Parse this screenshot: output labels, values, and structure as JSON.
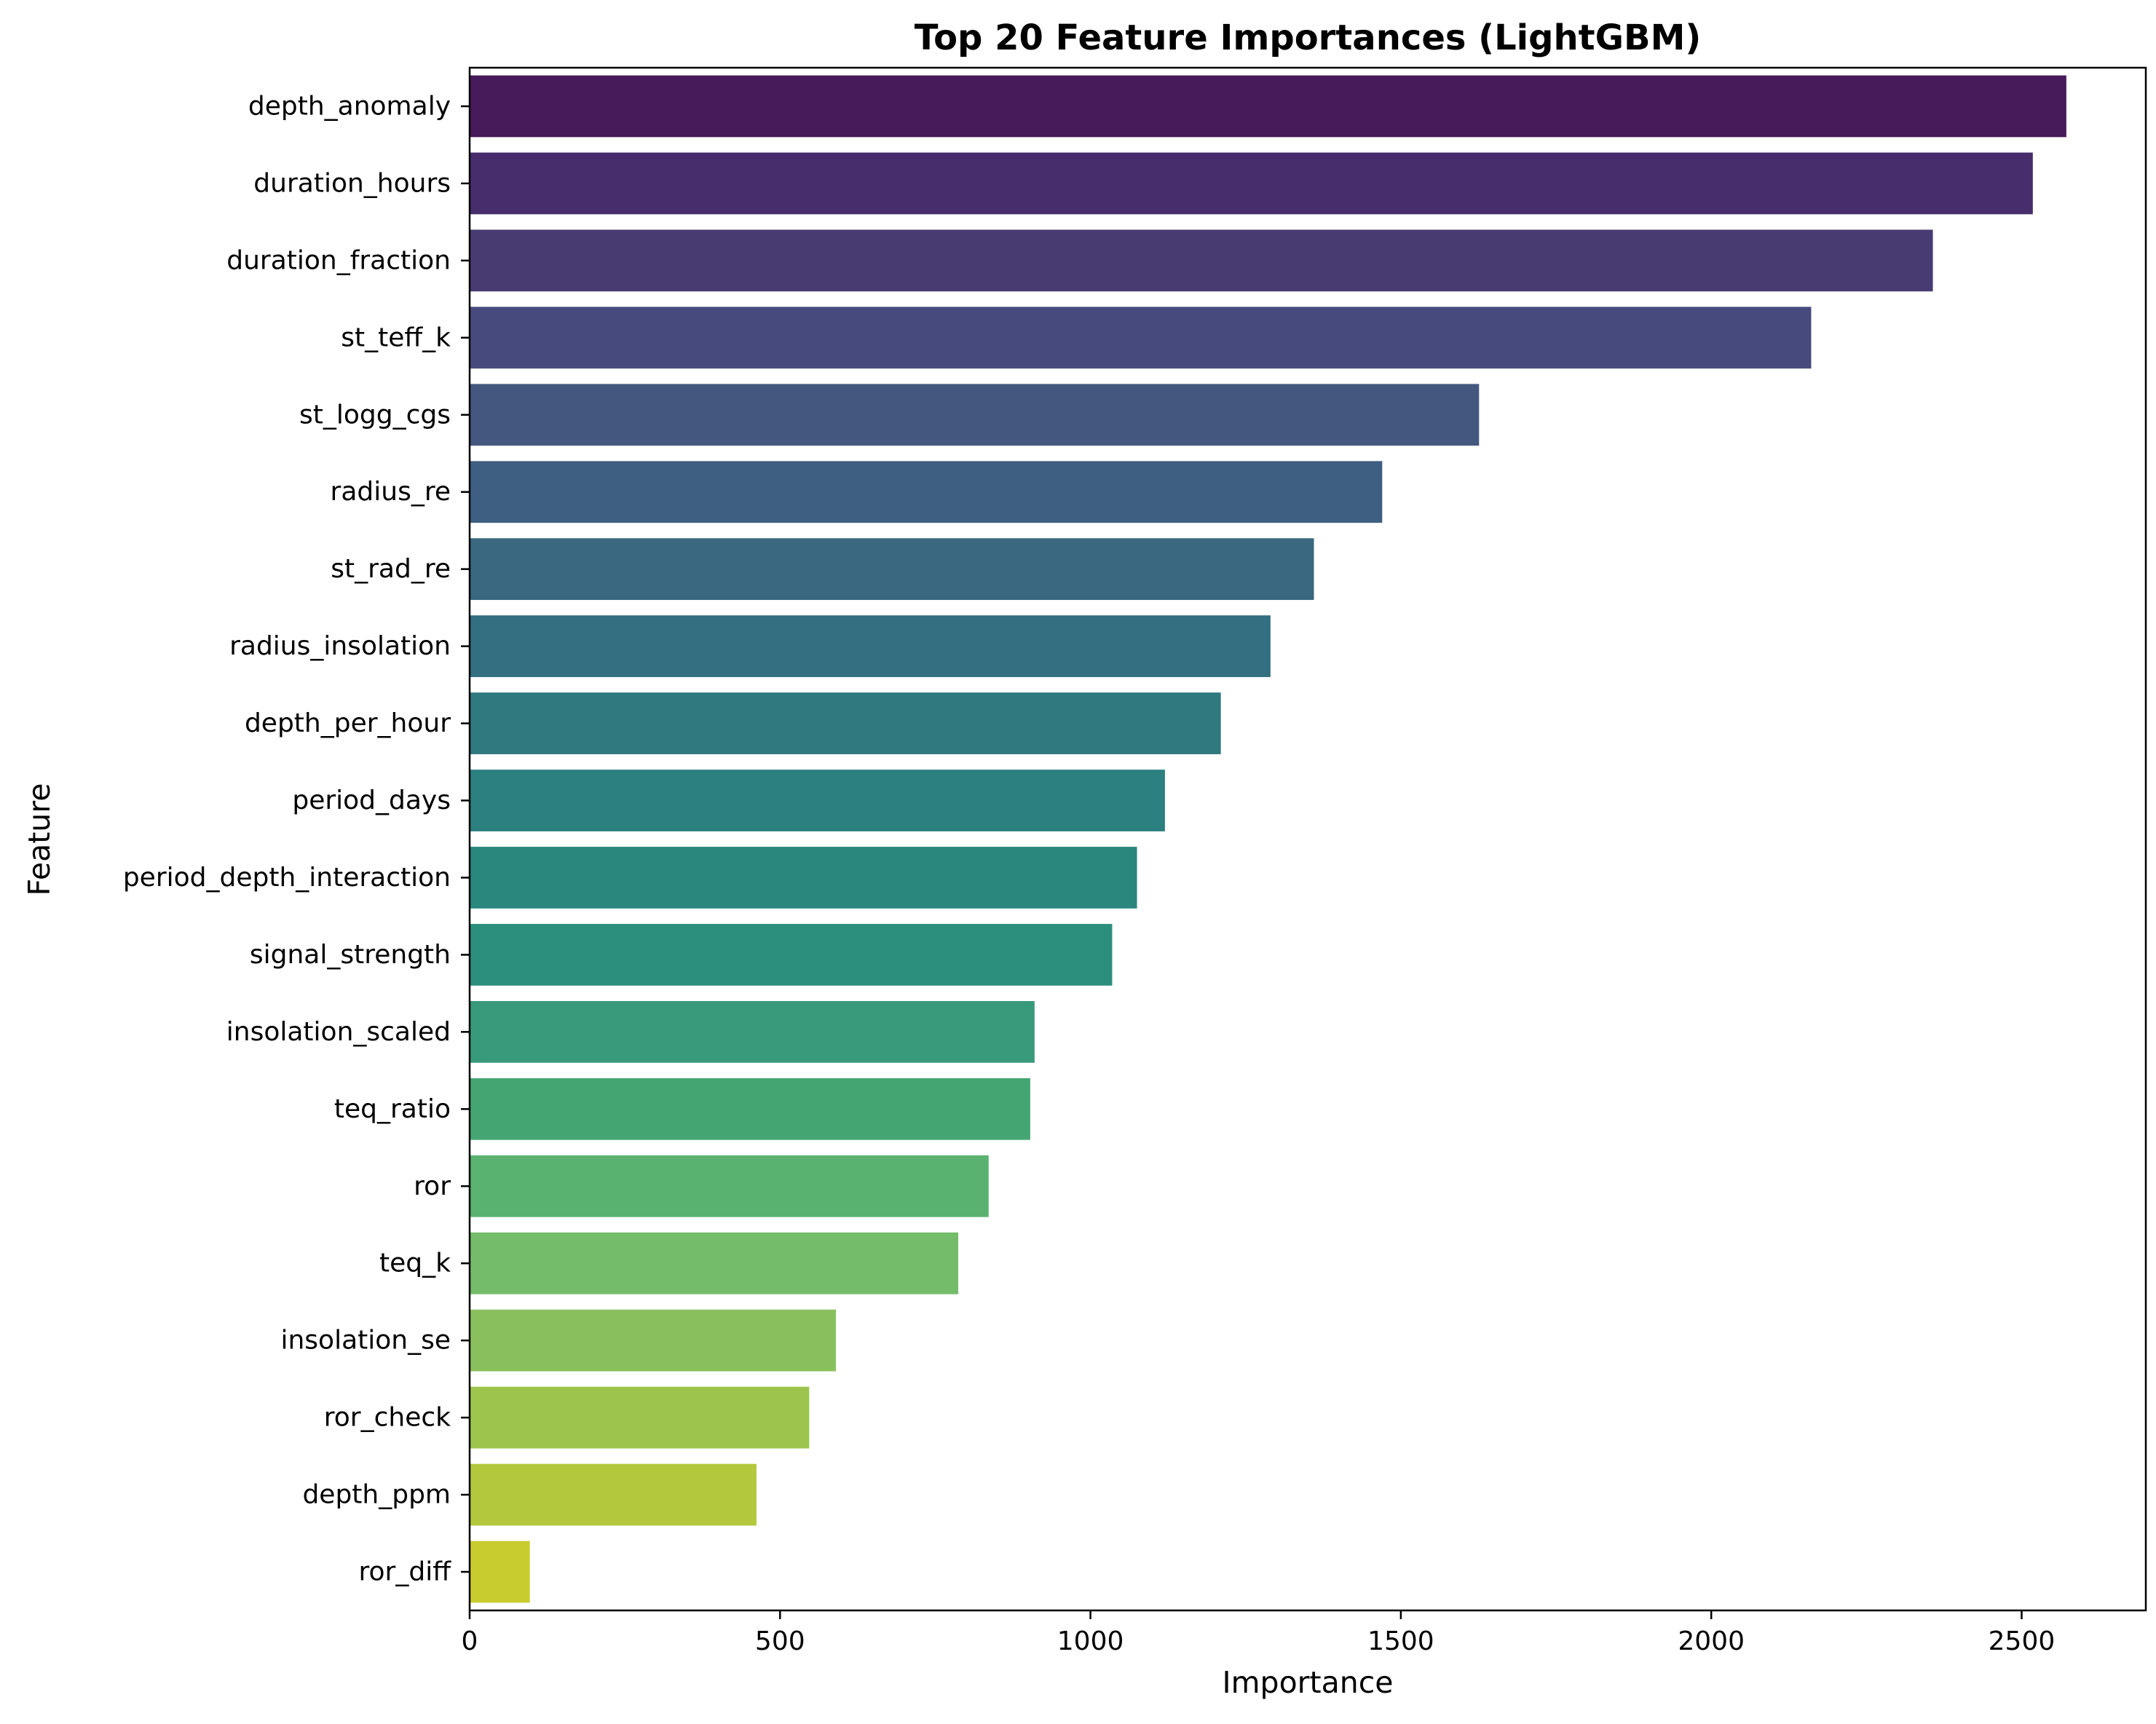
{
  "chart_data": {
    "type": "bar",
    "orientation": "horizontal",
    "title": "Top 20 Feature Importances (LightGBM)",
    "xlabel": "Importance",
    "ylabel": "Feature",
    "xlim": [
      0,
      2700
    ],
    "xticks": [
      0,
      500,
      1000,
      1500,
      2000,
      2500
    ],
    "grid": false,
    "categories": [
      "depth_anomaly",
      "duration_hours",
      "duration_fraction",
      "st_teff_k",
      "st_logg_cgs",
      "radius_re",
      "st_rad_re",
      "radius_insolation",
      "depth_per_hour",
      "period_days",
      "period_depth_interaction",
      "signal_strength",
      "insolation_scaled",
      "teq_ratio",
      "ror",
      "teq_k",
      "insolation_se",
      "ror_check",
      "depth_ppm",
      "ror_diff"
    ],
    "values": [
      2572,
      2518,
      2357,
      2161,
      1626,
      1470,
      1360,
      1290,
      1210,
      1120,
      1075,
      1035,
      910,
      903,
      836,
      787,
      590,
      547,
      462,
      97
    ],
    "colors": [
      "#471a59",
      "#472d6b",
      "#483b72",
      "#474a7c",
      "#44577f",
      "#3e5f81",
      "#396880",
      "#326f80",
      "#2f797f",
      "#2c807f",
      "#2a877e",
      "#2c8f7d",
      "#389a7a",
      "#44a573",
      "#5ab271",
      "#74bc69",
      "#89c05d",
      "#9dc54e",
      "#b3c83c",
      "#c9cc2f"
    ]
  }
}
